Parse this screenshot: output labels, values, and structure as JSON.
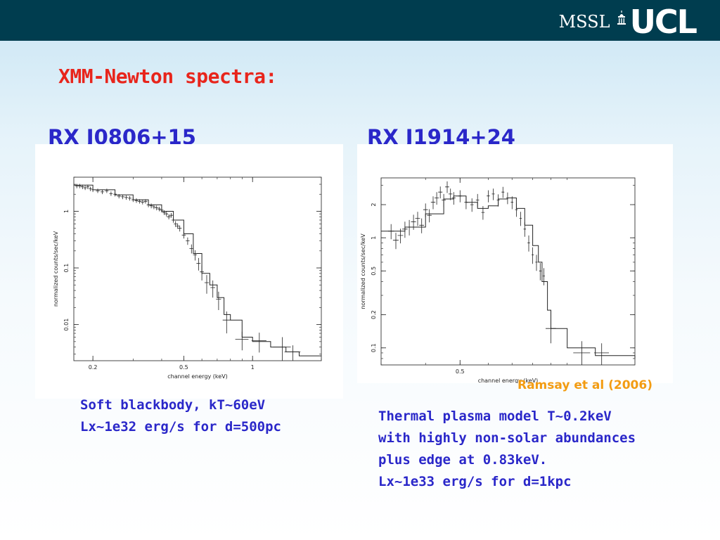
{
  "header": {
    "logo_text": "MSSL",
    "logo_ucl": "UCL",
    "colors": {
      "bar": "#003d4f",
      "logo": "#ffffff"
    }
  },
  "slide": {
    "title": "XMM-Newton spectra:",
    "citation": "Ramsay et al (2006)",
    "colors": {
      "title": "#e8251c",
      "text": "#2a27c9",
      "citation": "#f39c12"
    }
  },
  "left": {
    "title": "RX J0806+15",
    "caption_lines": [
      "Soft blackbody, kT~60eV",
      "Lx~1e32 erg/s for d=500pc"
    ]
  },
  "right": {
    "title": "RX J1914+24",
    "caption_lines": [
      "Thermal plasma model T~0.2keV",
      "with highly non-solar abundances",
      "plus edge at 0.83keV.",
      "Lx~1e33 erg/s for d=1kpc"
    ]
  },
  "chart_data": [
    {
      "type": "scatter",
      "xlabel": "channel energy (keV)",
      "ylabel": "normalized counts/sec/keV",
      "xscale": "log",
      "yscale": "log",
      "xlim": [
        0.165,
        2.0
      ],
      "ylim": [
        0.0023,
        4.0
      ],
      "xticks": [
        0.2,
        0.5,
        1
      ],
      "xtick_labels": [
        "0.2",
        "0.5",
        "1"
      ],
      "yticks": [
        1,
        0.1,
        0.01
      ],
      "ytick_labels": [
        "1",
        "0.1",
        "0.01"
      ],
      "grid": false,
      "series": [
        {
          "kind": "data",
          "points": [
            {
              "x": 0.17,
              "y": 2.8,
              "xe": 0.003,
              "ye": 0.25
            },
            {
              "x": 0.175,
              "y": 2.8,
              "xe": 0.003,
              "ye": 0.25
            },
            {
              "x": 0.18,
              "y": 2.7,
              "xe": 0.003,
              "ye": 0.24
            },
            {
              "x": 0.185,
              "y": 2.6,
              "xe": 0.003,
              "ye": 0.23
            },
            {
              "x": 0.19,
              "y": 2.7,
              "xe": 0.003,
              "ye": 0.24
            },
            {
              "x": 0.195,
              "y": 2.5,
              "xe": 0.003,
              "ye": 0.22
            },
            {
              "x": 0.2,
              "y": 2.4,
              "xe": 0.003,
              "ye": 0.21
            },
            {
              "x": 0.21,
              "y": 2.3,
              "xe": 0.004,
              "ye": 0.2
            },
            {
              "x": 0.22,
              "y": 2.2,
              "xe": 0.004,
              "ye": 0.19
            },
            {
              "x": 0.23,
              "y": 2.3,
              "xe": 0.004,
              "ye": 0.2
            },
            {
              "x": 0.24,
              "y": 2.05,
              "xe": 0.004,
              "ye": 0.18
            },
            {
              "x": 0.25,
              "y": 2.0,
              "xe": 0.004,
              "ye": 0.17
            },
            {
              "x": 0.26,
              "y": 1.85,
              "xe": 0.005,
              "ye": 0.16
            },
            {
              "x": 0.27,
              "y": 1.8,
              "xe": 0.005,
              "ye": 0.16
            },
            {
              "x": 0.28,
              "y": 1.75,
              "xe": 0.005,
              "ye": 0.15
            },
            {
              "x": 0.29,
              "y": 1.7,
              "xe": 0.005,
              "ye": 0.15
            },
            {
              "x": 0.3,
              "y": 1.6,
              "xe": 0.005,
              "ye": 0.14
            },
            {
              "x": 0.31,
              "y": 1.55,
              "xe": 0.005,
              "ye": 0.14
            },
            {
              "x": 0.32,
              "y": 1.5,
              "xe": 0.006,
              "ye": 0.13
            },
            {
              "x": 0.33,
              "y": 1.45,
              "xe": 0.006,
              "ye": 0.13
            },
            {
              "x": 0.34,
              "y": 1.5,
              "xe": 0.006,
              "ye": 0.13
            },
            {
              "x": 0.35,
              "y": 1.3,
              "xe": 0.006,
              "ye": 0.12
            },
            {
              "x": 0.36,
              "y": 1.25,
              "xe": 0.006,
              "ye": 0.12
            },
            {
              "x": 0.37,
              "y": 1.2,
              "xe": 0.006,
              "ye": 0.11
            },
            {
              "x": 0.38,
              "y": 1.15,
              "xe": 0.007,
              "ye": 0.11
            },
            {
              "x": 0.39,
              "y": 1.1,
              "xe": 0.007,
              "ye": 0.1
            },
            {
              "x": 0.4,
              "y": 1.05,
              "xe": 0.007,
              "ye": 0.1
            },
            {
              "x": 0.41,
              "y": 0.95,
              "xe": 0.007,
              "ye": 0.09
            },
            {
              "x": 0.42,
              "y": 0.9,
              "xe": 0.007,
              "ye": 0.09
            },
            {
              "x": 0.43,
              "y": 0.8,
              "xe": 0.008,
              "ye": 0.08
            },
            {
              "x": 0.44,
              "y": 0.85,
              "xe": 0.008,
              "ye": 0.08
            },
            {
              "x": 0.45,
              "y": 0.7,
              "xe": 0.008,
              "ye": 0.07
            },
            {
              "x": 0.46,
              "y": 0.6,
              "xe": 0.008,
              "ye": 0.07
            },
            {
              "x": 0.47,
              "y": 0.55,
              "xe": 0.008,
              "ye": 0.06
            },
            {
              "x": 0.48,
              "y": 0.5,
              "xe": 0.009,
              "ye": 0.06
            },
            {
              "x": 0.5,
              "y": 0.38,
              "xe": 0.01,
              "ye": 0.05
            },
            {
              "x": 0.52,
              "y": 0.3,
              "xe": 0.01,
              "ye": 0.045
            },
            {
              "x": 0.54,
              "y": 0.22,
              "xe": 0.011,
              "ye": 0.04
            },
            {
              "x": 0.56,
              "y": 0.17,
              "xe": 0.011,
              "ye": 0.035
            },
            {
              "x": 0.58,
              "y": 0.12,
              "xe": 0.012,
              "ye": 0.03
            },
            {
              "x": 0.6,
              "y": 0.085,
              "xe": 0.012,
              "ye": 0.025
            },
            {
              "x": 0.63,
              "y": 0.055,
              "xe": 0.014,
              "ye": 0.02
            },
            {
              "x": 0.67,
              "y": 0.045,
              "xe": 0.016,
              "ye": 0.015
            },
            {
              "x": 0.71,
              "y": 0.028,
              "xe": 0.018,
              "ye": 0.01
            },
            {
              "x": 0.77,
              "y": 0.012,
              "xe": 0.03,
              "ye": 0.005
            },
            {
              "x": 0.9,
              "y": 0.0055,
              "xe": 0.06,
              "ye": 0.002
            },
            {
              "x": 1.07,
              "y": 0.0052,
              "xe": 0.08,
              "ye": 0.002
            },
            {
              "x": 1.35,
              "y": 0.004,
              "xe": 0.12,
              "ye": 0.002
            },
            {
              "x": 1.5,
              "y": 0.0033,
              "xe": 0.12,
              "ye": 0.001
            }
          ]
        },
        {
          "kind": "model",
          "x": [
            0.165,
            0.2,
            0.25,
            0.3,
            0.35,
            0.4,
            0.45,
            0.5,
            0.55,
            0.6,
            0.65,
            0.7,
            0.75,
            0.8,
            0.9,
            1.0,
            1.2,
            1.4,
            1.6,
            2.0
          ],
          "y": [
            2.9,
            2.4,
            1.95,
            1.6,
            1.3,
            1.0,
            0.7,
            0.4,
            0.18,
            0.08,
            0.05,
            0.03,
            0.015,
            0.012,
            0.006,
            0.005,
            0.004,
            0.0033,
            0.0028,
            0.0028
          ]
        }
      ]
    },
    {
      "type": "scatter",
      "xlabel": "channel energy (keV)",
      "ylabel": "normalized counts/sec/keV",
      "xscale": "log",
      "yscale": "log",
      "xlim": [
        0.3,
        1.55
      ],
      "ylim": [
        0.07,
        3.5
      ],
      "xticks": [
        0.5
      ],
      "xtick_labels": [
        "0.5"
      ],
      "yticks": [
        2,
        1,
        0.5,
        0.2,
        0.1
      ],
      "ytick_labels": [
        "2",
        "1",
        "0.5",
        "0.2",
        "0.1"
      ],
      "grid": false,
      "series": [
        {
          "kind": "data",
          "points": [
            {
              "x": 0.32,
              "y": 1.15,
              "xe": 0.006,
              "ye": 0.18
            },
            {
              "x": 0.33,
              "y": 0.95,
              "xe": 0.006,
              "ye": 0.16
            },
            {
              "x": 0.34,
              "y": 1.05,
              "xe": 0.006,
              "ye": 0.16
            },
            {
              "x": 0.35,
              "y": 1.2,
              "xe": 0.006,
              "ye": 0.2
            },
            {
              "x": 0.36,
              "y": 1.25,
              "xe": 0.006,
              "ye": 0.2
            },
            {
              "x": 0.37,
              "y": 1.4,
              "xe": 0.006,
              "ye": 0.22
            },
            {
              "x": 0.38,
              "y": 1.5,
              "xe": 0.006,
              "ye": 0.22
            },
            {
              "x": 0.39,
              "y": 1.3,
              "xe": 0.006,
              "ye": 0.2
            },
            {
              "x": 0.4,
              "y": 1.8,
              "xe": 0.006,
              "ye": 0.25
            },
            {
              "x": 0.41,
              "y": 1.6,
              "xe": 0.006,
              "ye": 0.22
            },
            {
              "x": 0.42,
              "y": 2.1,
              "xe": 0.006,
              "ye": 0.28
            },
            {
              "x": 0.43,
              "y": 2.3,
              "xe": 0.006,
              "ye": 0.3
            },
            {
              "x": 0.44,
              "y": 2.6,
              "xe": 0.006,
              "ye": 0.32
            },
            {
              "x": 0.45,
              "y": 2.2,
              "xe": 0.006,
              "ye": 0.3
            },
            {
              "x": 0.46,
              "y": 2.9,
              "xe": 0.006,
              "ye": 0.35
            },
            {
              "x": 0.47,
              "y": 2.5,
              "xe": 0.006,
              "ye": 0.3
            },
            {
              "x": 0.48,
              "y": 2.3,
              "xe": 0.006,
              "ye": 0.3
            },
            {
              "x": 0.5,
              "y": 2.4,
              "xe": 0.006,
              "ye": 0.3
            },
            {
              "x": 0.52,
              "y": 2.1,
              "xe": 0.006,
              "ye": 0.28
            },
            {
              "x": 0.54,
              "y": 2.0,
              "xe": 0.006,
              "ye": 0.28
            },
            {
              "x": 0.56,
              "y": 2.2,
              "xe": 0.006,
              "ye": 0.3
            },
            {
              "x": 0.58,
              "y": 1.7,
              "xe": 0.006,
              "ye": 0.24
            },
            {
              "x": 0.6,
              "y": 2.4,
              "xe": 0.006,
              "ye": 0.3
            },
            {
              "x": 0.62,
              "y": 2.5,
              "xe": 0.006,
              "ye": 0.3
            },
            {
              "x": 0.64,
              "y": 2.2,
              "xe": 0.006,
              "ye": 0.28
            },
            {
              "x": 0.66,
              "y": 2.6,
              "xe": 0.006,
              "ye": 0.3
            },
            {
              "x": 0.68,
              "y": 2.3,
              "xe": 0.006,
              "ye": 0.28
            },
            {
              "x": 0.7,
              "y": 2.1,
              "xe": 0.006,
              "ye": 0.28
            },
            {
              "x": 0.72,
              "y": 1.8,
              "xe": 0.006,
              "ye": 0.25
            },
            {
              "x": 0.74,
              "y": 1.5,
              "xe": 0.006,
              "ye": 0.22
            },
            {
              "x": 0.76,
              "y": 1.2,
              "xe": 0.006,
              "ye": 0.18
            },
            {
              "x": 0.78,
              "y": 0.9,
              "xe": 0.006,
              "ye": 0.15
            },
            {
              "x": 0.8,
              "y": 0.7,
              "xe": 0.006,
              "ye": 0.12
            },
            {
              "x": 0.82,
              "y": 0.6,
              "xe": 0.006,
              "ye": 0.1
            },
            {
              "x": 0.84,
              "y": 0.5,
              "xe": 0.006,
              "ye": 0.09
            },
            {
              "x": 0.86,
              "y": 0.45,
              "xe": 0.006,
              "ye": 0.08
            },
            {
              "x": 0.9,
              "y": 0.15,
              "xe": 0.03,
              "ye": 0.04
            },
            {
              "x": 1.1,
              "y": 0.09,
              "xe": 0.06,
              "ye": 0.025
            },
            {
              "x": 1.25,
              "y": 0.09,
              "xe": 0.06,
              "ye": 0.02
            }
          ]
        },
        {
          "kind": "model",
          "x": [
            0.3,
            0.35,
            0.4,
            0.45,
            0.48,
            0.52,
            0.56,
            0.6,
            0.64,
            0.68,
            0.72,
            0.76,
            0.8,
            0.83,
            0.85,
            0.88,
            0.9,
            1.0,
            1.2,
            1.55
          ],
          "y": [
            1.15,
            1.25,
            1.65,
            2.25,
            2.4,
            2.1,
            1.85,
            1.95,
            2.25,
            2.3,
            1.85,
            1.3,
            0.85,
            0.6,
            0.4,
            0.22,
            0.15,
            0.1,
            0.085,
            0.08
          ]
        }
      ]
    }
  ]
}
